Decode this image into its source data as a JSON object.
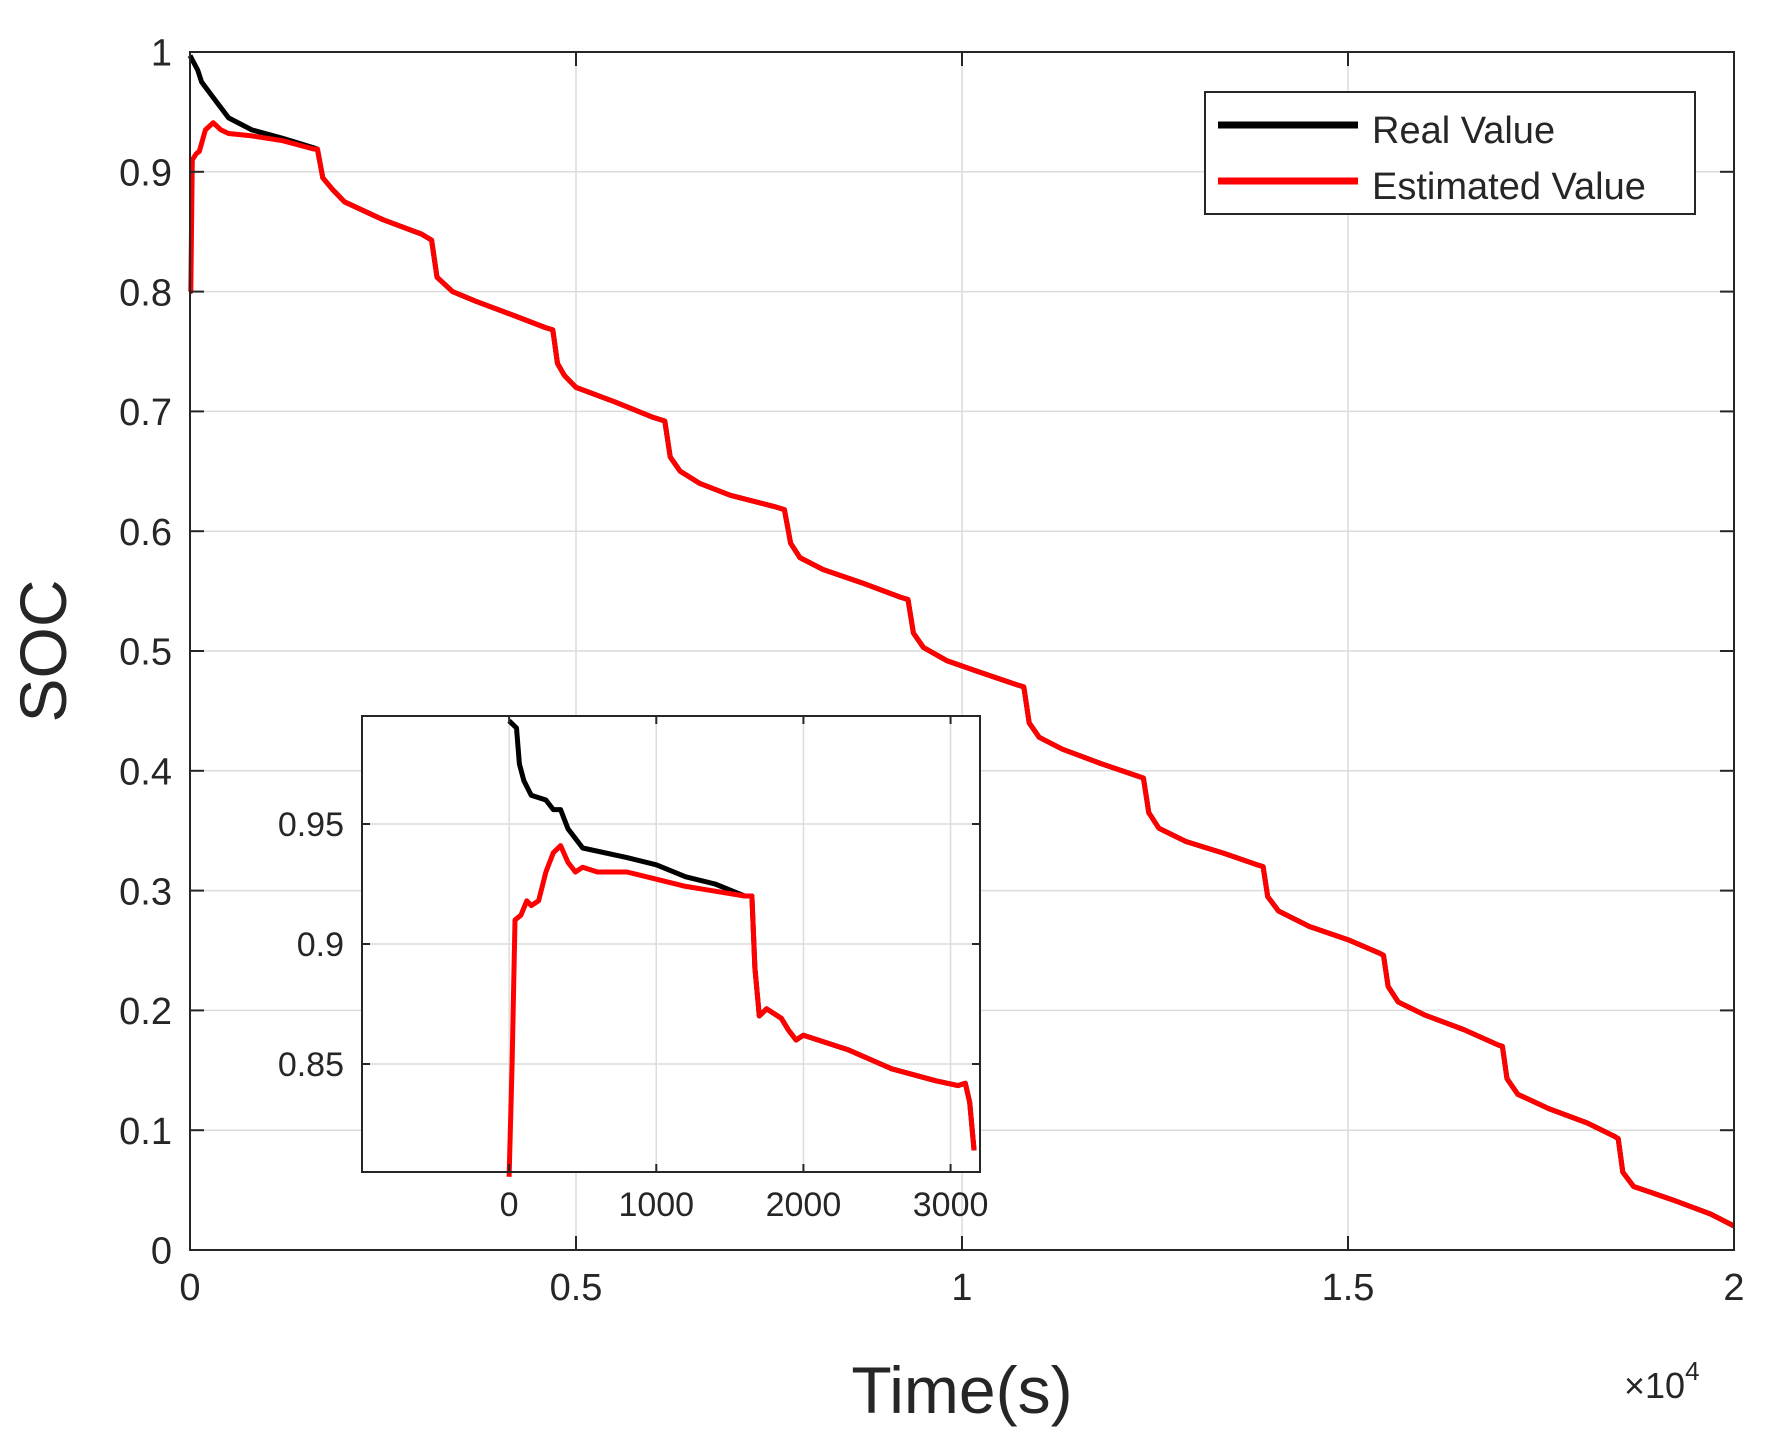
{
  "chart_data": [
    {
      "id": "main",
      "type": "line",
      "title": "",
      "xlabel": "Time(s)",
      "ylabel": "SOC",
      "xlim": [
        0,
        20000
      ],
      "ylim": [
        0,
        1
      ],
      "x_multiplier_label": "×10",
      "x_multiplier_exponent": "4",
      "xtick_values": [
        0,
        5000,
        10000,
        15000,
        20000
      ],
      "xtick_labels": [
        "0",
        "0.5",
        "1",
        "1.5",
        "2"
      ],
      "ytick_values": [
        0,
        0.1,
        0.2,
        0.3,
        0.4,
        0.5,
        0.6,
        0.7,
        0.8,
        0.9,
        1
      ],
      "ytick_labels": [
        "0",
        "0.1",
        "0.2",
        "0.3",
        "0.4",
        "0.5",
        "0.6",
        "0.7",
        "0.8",
        "0.9",
        "1"
      ],
      "grid": true,
      "legend_position": "top-right",
      "series": [
        {
          "name": "Real Value",
          "color": "#000000",
          "points": [
            [
              0,
              0.997
            ],
            [
              100,
              0.985
            ],
            [
              150,
              0.975
            ],
            [
              300,
              0.962
            ],
            [
              500,
              0.945
            ],
            [
              800,
              0.935
            ],
            [
              1200,
              0.928
            ],
            [
              1600,
              0.92
            ],
            [
              1650,
              0.919
            ],
            [
              1720,
              0.895
            ],
            [
              1850,
              0.885
            ],
            [
              2000,
              0.875
            ],
            [
              2500,
              0.86
            ],
            [
              3000,
              0.848
            ],
            [
              3130,
              0.843
            ],
            [
              3200,
              0.812
            ],
            [
              3400,
              0.8
            ],
            [
              3700,
              0.792
            ],
            [
              4200,
              0.78
            ],
            [
              4600,
              0.77
            ],
            [
              4700,
              0.768
            ],
            [
              4760,
              0.74
            ],
            [
              4850,
              0.73
            ],
            [
              5000,
              0.72
            ],
            [
              5500,
              0.708
            ],
            [
              6000,
              0.695
            ],
            [
              6150,
              0.692
            ],
            [
              6220,
              0.662
            ],
            [
              6350,
              0.65
            ],
            [
              6600,
              0.64
            ],
            [
              7000,
              0.63
            ],
            [
              7600,
              0.62
            ],
            [
              7700,
              0.618
            ],
            [
              7780,
              0.59
            ],
            [
              7900,
              0.578
            ],
            [
              8200,
              0.568
            ],
            [
              8700,
              0.557
            ],
            [
              9200,
              0.545
            ],
            [
              9300,
              0.543
            ],
            [
              9370,
              0.515
            ],
            [
              9500,
              0.503
            ],
            [
              9800,
              0.492
            ],
            [
              10200,
              0.483
            ],
            [
              10700,
              0.472
            ],
            [
              10800,
              0.47
            ],
            [
              10870,
              0.44
            ],
            [
              11000,
              0.428
            ],
            [
              11300,
              0.418
            ],
            [
              11800,
              0.406
            ],
            [
              12300,
              0.395
            ],
            [
              12350,
              0.394
            ],
            [
              12420,
              0.365
            ],
            [
              12550,
              0.352
            ],
            [
              12900,
              0.341
            ],
            [
              13400,
              0.331
            ],
            [
              13800,
              0.322
            ],
            [
              13900,
              0.32
            ],
            [
              13960,
              0.295
            ],
            [
              14100,
              0.283
            ],
            [
              14500,
              0.27
            ],
            [
              15000,
              0.259
            ],
            [
              15400,
              0.248
            ],
            [
              15460,
              0.246
            ],
            [
              15520,
              0.22
            ],
            [
              15650,
              0.207
            ],
            [
              16000,
              0.196
            ],
            [
              16500,
              0.184
            ],
            [
              16950,
              0.171
            ],
            [
              17000,
              0.17
            ],
            [
              17060,
              0.143
            ],
            [
              17200,
              0.13
            ],
            [
              17600,
              0.118
            ],
            [
              18100,
              0.106
            ],
            [
              18450,
              0.095
            ],
            [
              18500,
              0.093
            ],
            [
              18560,
              0.065
            ],
            [
              18700,
              0.053
            ],
            [
              19200,
              0.042
            ],
            [
              19700,
              0.03
            ],
            [
              20000,
              0.02
            ]
          ]
        },
        {
          "name": "Estimated Value",
          "color": "#ff0000",
          "points": [
            [
              0,
              0.8
            ],
            [
              10,
              0.8
            ],
            [
              30,
              0.91
            ],
            [
              80,
              0.915
            ],
            [
              120,
              0.917
            ],
            [
              200,
              0.935
            ],
            [
              300,
              0.941
            ],
            [
              400,
              0.935
            ],
            [
              500,
              0.932
            ],
            [
              800,
              0.93
            ],
            [
              1200,
              0.926
            ],
            [
              1600,
              0.919
            ],
            [
              1650,
              0.919
            ],
            [
              1720,
              0.895
            ],
            [
              1850,
              0.885
            ],
            [
              2000,
              0.875
            ],
            [
              2500,
              0.86
            ],
            [
              3000,
              0.848
            ],
            [
              3130,
              0.843
            ],
            [
              3200,
              0.812
            ],
            [
              3400,
              0.8
            ],
            [
              3700,
              0.792
            ],
            [
              4200,
              0.78
            ],
            [
              4600,
              0.77
            ],
            [
              4700,
              0.768
            ],
            [
              4760,
              0.74
            ],
            [
              4850,
              0.73
            ],
            [
              5000,
              0.72
            ],
            [
              5500,
              0.708
            ],
            [
              6000,
              0.695
            ],
            [
              6150,
              0.692
            ],
            [
              6220,
              0.662
            ],
            [
              6350,
              0.65
            ],
            [
              6600,
              0.64
            ],
            [
              7000,
              0.63
            ],
            [
              7600,
              0.62
            ],
            [
              7700,
              0.618
            ],
            [
              7780,
              0.59
            ],
            [
              7900,
              0.578
            ],
            [
              8200,
              0.568
            ],
            [
              8700,
              0.557
            ],
            [
              9200,
              0.545
            ],
            [
              9300,
              0.543
            ],
            [
              9370,
              0.515
            ],
            [
              9500,
              0.503
            ],
            [
              9800,
              0.492
            ],
            [
              10200,
              0.483
            ],
            [
              10700,
              0.472
            ],
            [
              10800,
              0.47
            ],
            [
              10870,
              0.44
            ],
            [
              11000,
              0.428
            ],
            [
              11300,
              0.418
            ],
            [
              11800,
              0.406
            ],
            [
              12300,
              0.395
            ],
            [
              12350,
              0.394
            ],
            [
              12420,
              0.365
            ],
            [
              12550,
              0.352
            ],
            [
              12900,
              0.341
            ],
            [
              13400,
              0.331
            ],
            [
              13800,
              0.322
            ],
            [
              13900,
              0.32
            ],
            [
              13960,
              0.295
            ],
            [
              14100,
              0.283
            ],
            [
              14500,
              0.27
            ],
            [
              15000,
              0.259
            ],
            [
              15400,
              0.248
            ],
            [
              15460,
              0.246
            ],
            [
              15520,
              0.22
            ],
            [
              15650,
              0.207
            ],
            [
              16000,
              0.196
            ],
            [
              16500,
              0.184
            ],
            [
              16950,
              0.171
            ],
            [
              17000,
              0.17
            ],
            [
              17060,
              0.143
            ],
            [
              17200,
              0.13
            ],
            [
              17600,
              0.118
            ],
            [
              18100,
              0.106
            ],
            [
              18450,
              0.095
            ],
            [
              18500,
              0.093
            ],
            [
              18560,
              0.065
            ],
            [
              18700,
              0.053
            ],
            [
              19200,
              0.042
            ],
            [
              19700,
              0.03
            ],
            [
              20000,
              0.02
            ]
          ]
        }
      ]
    },
    {
      "id": "inset",
      "type": "line",
      "title": "",
      "xlabel": "",
      "ylabel": "",
      "xlim": [
        -1000,
        3200
      ],
      "ylim": [
        0.805,
        0.995
      ],
      "xtick_values": [
        0,
        1000,
        2000,
        3000
      ],
      "xtick_labels": [
        "0",
        "1000",
        "2000",
        "3000"
      ],
      "ytick_values": [
        0.85,
        0.9,
        0.95
      ],
      "ytick_labels": [
        "0.85",
        "0.9",
        "0.95"
      ],
      "grid": true,
      "series": [
        {
          "name": "Real Value",
          "color": "#000000",
          "points": [
            [
              0,
              0.993
            ],
            [
              50,
              0.99
            ],
            [
              70,
              0.975
            ],
            [
              100,
              0.968
            ],
            [
              150,
              0.962
            ],
            [
              250,
              0.96
            ],
            [
              300,
              0.956
            ],
            [
              350,
              0.956
            ],
            [
              400,
              0.948
            ],
            [
              500,
              0.94
            ],
            [
              800,
              0.936
            ],
            [
              1000,
              0.933
            ],
            [
              1200,
              0.928
            ],
            [
              1400,
              0.925
            ],
            [
              1600,
              0.92
            ],
            [
              1650,
              0.92
            ],
            [
              1670,
              0.89
            ],
            [
              1700,
              0.87
            ],
            [
              1750,
              0.873
            ],
            [
              1850,
              0.869
            ],
            [
              1900,
              0.864
            ],
            [
              1950,
              0.86
            ],
            [
              2000,
              0.862
            ],
            [
              2300,
              0.856
            ],
            [
              2600,
              0.848
            ],
            [
              2900,
              0.843
            ],
            [
              3050,
              0.841
            ],
            [
              3100,
              0.842
            ],
            [
              3130,
              0.834
            ],
            [
              3160,
              0.814
            ]
          ]
        },
        {
          "name": "Estimated Value",
          "color": "#ff0000",
          "points": [
            [
              0,
              0.803
            ],
            [
              20,
              0.85
            ],
            [
              40,
              0.91
            ],
            [
              80,
              0.912
            ],
            [
              120,
              0.918
            ],
            [
              150,
              0.916
            ],
            [
              200,
              0.918
            ],
            [
              250,
              0.93
            ],
            [
              300,
              0.938
            ],
            [
              350,
              0.941
            ],
            [
              400,
              0.934
            ],
            [
              450,
              0.93
            ],
            [
              500,
              0.932
            ],
            [
              600,
              0.93
            ],
            [
              800,
              0.93
            ],
            [
              1000,
              0.927
            ],
            [
              1200,
              0.924
            ],
            [
              1400,
              0.922
            ],
            [
              1600,
              0.92
            ],
            [
              1650,
              0.92
            ],
            [
              1670,
              0.89
            ],
            [
              1700,
              0.87
            ],
            [
              1750,
              0.873
            ],
            [
              1850,
              0.869
            ],
            [
              1900,
              0.864
            ],
            [
              1950,
              0.86
            ],
            [
              2000,
              0.862
            ],
            [
              2300,
              0.856
            ],
            [
              2600,
              0.848
            ],
            [
              2900,
              0.843
            ],
            [
              3050,
              0.841
            ],
            [
              3100,
              0.842
            ],
            [
              3130,
              0.834
            ],
            [
              3160,
              0.814
            ]
          ]
        }
      ]
    }
  ]
}
